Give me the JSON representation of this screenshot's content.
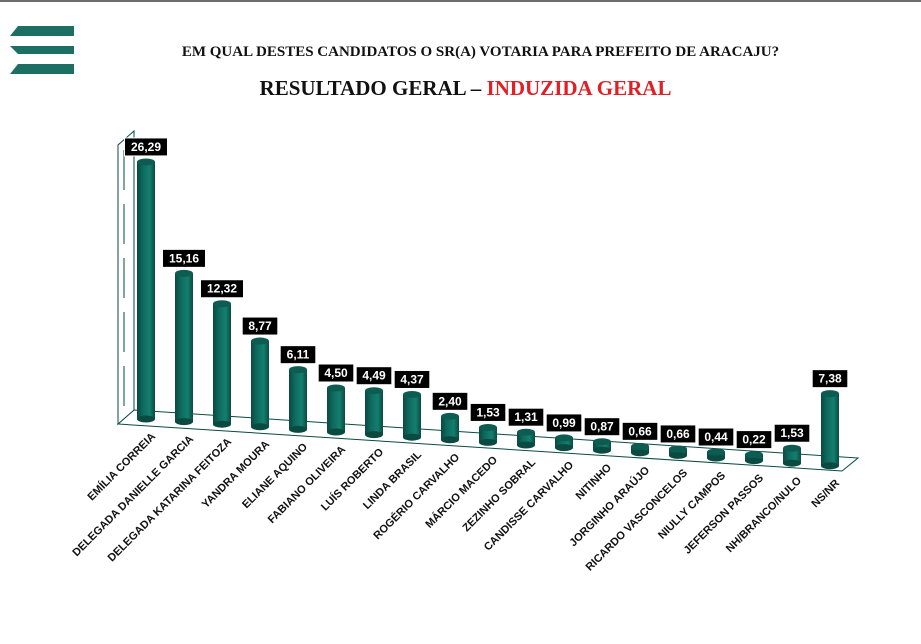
{
  "header": {
    "question": "EM QUAL DESTES CANDIDATOS O SR(A) VOTARIA PARA PREFEITO DE ARACAJU?",
    "title_part1": "RESULTADO GERAL – ",
    "title_part2": "INDUZIDA GERAL"
  },
  "colors": {
    "bar": "#0f6b5f",
    "bar_dark": "#0a4a41",
    "label_bg": "#000000",
    "title_red": "#e01f26",
    "logo": "#1b6f63"
  },
  "chart_data": {
    "type": "bar",
    "title": "RESULTADO GERAL – INDUZIDA GERAL",
    "categories": [
      "EMÍLIA CORREIA",
      "DELEGADA DANIELLE GARCIA",
      "DELEGADA KATARINA FEITOZA",
      "YANDRA MOURA",
      "ELIANE AQUINO",
      "FABIANO OLIVEIRA",
      "LUÍS ROBERTO",
      "LINDA BRASIL",
      "ROGÉRIO CARVALHO",
      "MÁRCIO MACEDO",
      "ZEZINHO SOBRAL",
      "CANDISSE CARVALHO",
      "NITINHO",
      "JORGINHO ARAÚJO",
      "RICARDO VASCONCELOS",
      "NIULLY CAMPOS",
      "JEFERSON PASSOS",
      "NH/BRANCO/NULO",
      "NS/NR"
    ],
    "values": [
      26.29,
      15.16,
      12.32,
      8.77,
      6.11,
      4.5,
      4.49,
      4.37,
      2.4,
      1.53,
      1.31,
      0.99,
      0.87,
      0.66,
      0.66,
      0.44,
      0.22,
      1.53,
      7.38
    ],
    "value_labels": [
      "26,29",
      "15,16",
      "12,32",
      "8,77",
      "6,11",
      "4,50",
      "4,49",
      "4,37",
      "2,40",
      "1,53",
      "1,31",
      "0,99",
      "0,87",
      "0,66",
      "0,66",
      "0,44",
      "0,22",
      "1,53",
      "7,38"
    ],
    "ylim": [
      0,
      27
    ],
    "grid": false,
    "legend": "none",
    "style": "3d-cylinder"
  }
}
